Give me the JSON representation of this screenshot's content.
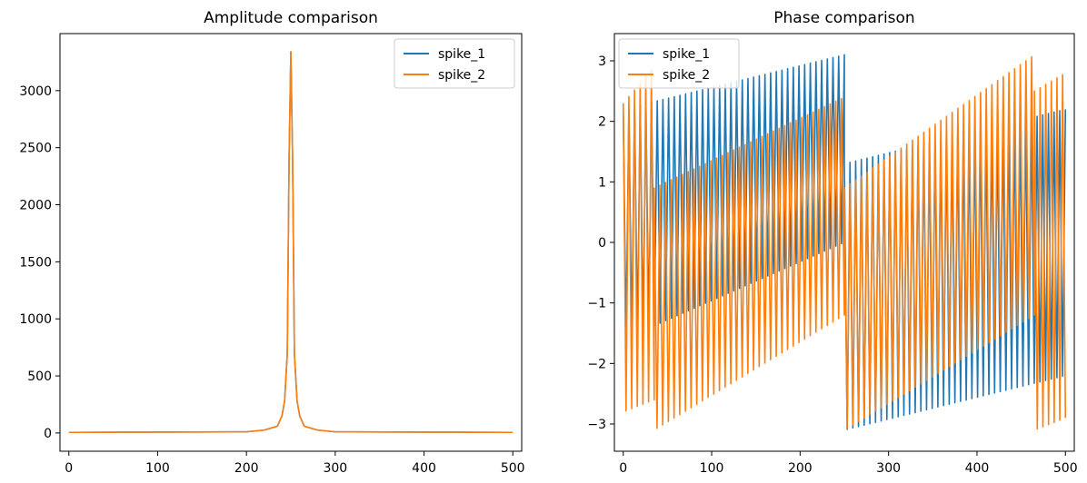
{
  "chart_data": [
    {
      "type": "line",
      "title": "Amplitude comparison",
      "xlabel": "",
      "ylabel": "",
      "xlim": [
        -10,
        510
      ],
      "ylim": [
        -160,
        3500
      ],
      "xticks": [
        0,
        100,
        200,
        300,
        400,
        500
      ],
      "yticks": [
        0,
        500,
        1000,
        1500,
        2000,
        2500,
        3000
      ],
      "grid": false,
      "legend": {
        "placement": "upper right",
        "entries": [
          "spike_1",
          "spike_2"
        ]
      },
      "series": [
        {
          "name": "spike_1",
          "color": "#1f77b4",
          "description_points": [
            [
              0,
              5
            ],
            [
              200,
              10
            ],
            [
              220,
              25
            ],
            [
              235,
              60
            ],
            [
              240,
              150
            ],
            [
              243,
              280
            ],
            [
              246,
              700
            ],
            [
              248,
              2400
            ],
            [
              250,
              3340
            ],
            [
              252,
              2400
            ],
            [
              254,
              700
            ],
            [
              257,
              280
            ],
            [
              260,
              150
            ],
            [
              265,
              60
            ],
            [
              280,
              25
            ],
            [
              300,
              10
            ],
            [
              500,
              5
            ]
          ]
        },
        {
          "name": "spike_2",
          "color": "#ff7f0e",
          "description_points": [
            [
              0,
              5
            ],
            [
              200,
              10
            ],
            [
              220,
              25
            ],
            [
              235,
              60
            ],
            [
              240,
              150
            ],
            [
              243,
              280
            ],
            [
              246,
              700
            ],
            [
              248,
              2400
            ],
            [
              250,
              3340
            ],
            [
              252,
              2400
            ],
            [
              254,
              700
            ],
            [
              257,
              280
            ],
            [
              260,
              150
            ],
            [
              265,
              60
            ],
            [
              280,
              25
            ],
            [
              300,
              10
            ],
            [
              500,
              5
            ]
          ]
        }
      ]
    },
    {
      "type": "line",
      "title": "Phase comparison",
      "xlabel": "",
      "ylabel": "",
      "xlim": [
        -10,
        510
      ],
      "ylim": [
        -3.45,
        3.45
      ],
      "xticks": [
        0,
        100,
        200,
        300,
        400,
        500
      ],
      "yticks": [
        -3,
        -2,
        -1,
        0,
        1,
        2,
        3
      ],
      "grid": false,
      "legend": {
        "placement": "upper left",
        "entries": [
          "spike_1",
          "spike_2"
        ]
      },
      "series": [
        {
          "name": "spike_1",
          "color": "#1f77b4",
          "segments": [
            {
              "x_start": 0,
              "x_end": 250,
              "low_start": -1.6,
              "low_end": 0.0,
              "high_start": 2.2,
              "high_end": 3.1
            },
            {
              "x_start": 250,
              "x_end": 500,
              "low_start": -3.1,
              "low_end": -2.2,
              "high_start": 1.3,
              "high_end": 2.2
            }
          ]
        },
        {
          "name": "spike_2",
          "color": "#ff7f0e",
          "segments": [
            {
              "x_start": 0,
              "x_end": 35,
              "low_start": -2.8,
              "low_end": -2.6,
              "high_start": 2.3,
              "high_end": 2.9
            },
            {
              "x_start": 35,
              "x_end": 250,
              "low_start": -3.1,
              "low_end": -1.2,
              "high_start": 0.9,
              "high_end": 2.4
            },
            {
              "x_start": 250,
              "x_end": 465,
              "low_start": -3.1,
              "low_end": -1.2,
              "high_start": 0.9,
              "high_end": 3.1
            },
            {
              "x_start": 465,
              "x_end": 500,
              "low_start": -3.1,
              "low_end": -2.9,
              "high_start": 2.5,
              "high_end": 2.8
            }
          ]
        }
      ]
    }
  ]
}
